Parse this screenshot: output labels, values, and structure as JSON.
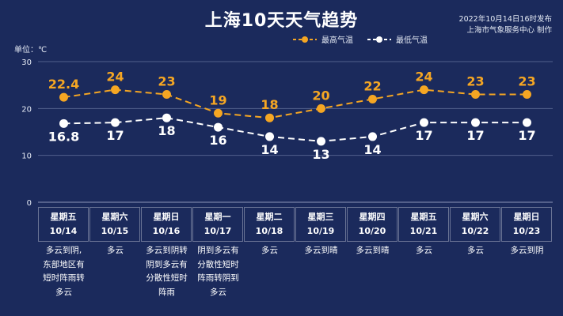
{
  "header": {
    "title": "上海10天天气趋势",
    "publish_time": "2022年10月14日16时发布",
    "publisher": "上海市气象服务中心 制作",
    "unit_label": "单位：℃"
  },
  "legend": {
    "high_label": "最高气温",
    "low_label": "最低气温"
  },
  "colors": {
    "background": "#1b2a5c",
    "high": "#f5a623",
    "low": "#ffffff",
    "grid": "#52608c"
  },
  "chart_data": {
    "type": "line",
    "categories": [
      "10/14",
      "10/15",
      "10/16",
      "10/17",
      "10/18",
      "10/19",
      "10/20",
      "10/21",
      "10/22",
      "10/23"
    ],
    "series": [
      {
        "name": "最高气温",
        "values": [
          22.4,
          24,
          23,
          19,
          18,
          20,
          22,
          24,
          23,
          23
        ]
      },
      {
        "name": "最低气温",
        "values": [
          16.8,
          17,
          18,
          16,
          14,
          13,
          14,
          17,
          17,
          17
        ]
      }
    ],
    "data_labels": {
      "high": [
        "22.4",
        "24",
        "23",
        "19",
        "18",
        "20",
        "22",
        "24",
        "23",
        "23"
      ],
      "low": [
        "16.8",
        "17",
        "18",
        "16",
        "14",
        "13",
        "14",
        "17",
        "17",
        "17"
      ]
    },
    "ylim": [
      0,
      30
    ],
    "yticks": [
      0,
      10,
      20,
      30
    ],
    "ytick_labels": [
      "0",
      "10",
      "20",
      "30"
    ],
    "grid": true,
    "legend_position": "top-center"
  },
  "days": [
    {
      "weekday": "星期五",
      "date": "10/14",
      "weather": [
        "多云到阴,",
        "东部地区有",
        "短时阵雨转",
        "多云"
      ]
    },
    {
      "weekday": "星期六",
      "date": "10/15",
      "weather": [
        "多云"
      ]
    },
    {
      "weekday": "星期日",
      "date": "10/16",
      "weather": [
        "多云到阴转",
        "阴到多云有",
        "分散性短时",
        "阵雨"
      ]
    },
    {
      "weekday": "星期一",
      "date": "10/17",
      "weather": [
        "阴到多云有",
        "分散性短时",
        "阵雨转阴到",
        "多云"
      ]
    },
    {
      "weekday": "星期二",
      "date": "10/18",
      "weather": [
        "多云"
      ]
    },
    {
      "weekday": "星期三",
      "date": "10/19",
      "weather": [
        "多云到晴"
      ]
    },
    {
      "weekday": "星期四",
      "date": "10/20",
      "weather": [
        "多云到晴"
      ]
    },
    {
      "weekday": "星期五",
      "date": "10/21",
      "weather": [
        "多云"
      ]
    },
    {
      "weekday": "星期六",
      "date": "10/22",
      "weather": [
        "多云"
      ]
    },
    {
      "weekday": "星期日",
      "date": "10/23",
      "weather": [
        "多云到阴"
      ]
    }
  ]
}
